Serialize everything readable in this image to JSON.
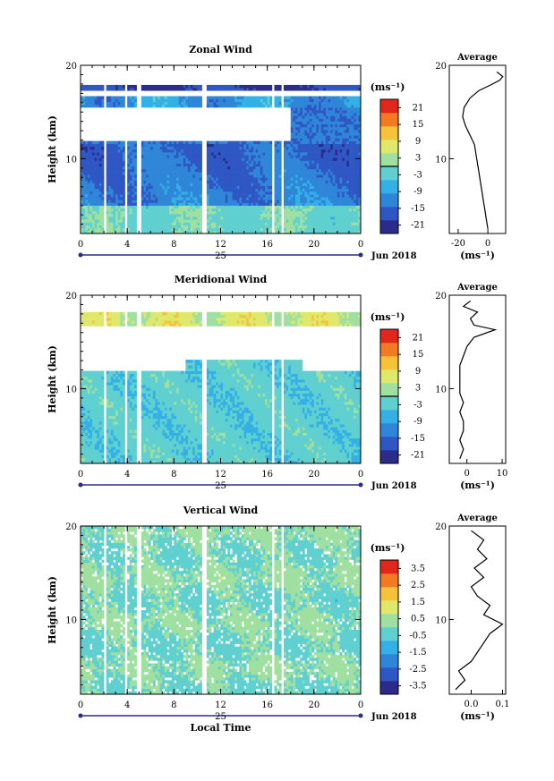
{
  "chart_data": [
    {
      "type": "heatmap",
      "title": "Zonal Wind",
      "ylabel": "Height (km)",
      "y_ticks": [
        "20",
        "10"
      ],
      "x_ticks": [
        "0",
        "4",
        "8",
        "12",
        "16",
        "20",
        "0"
      ],
      "x_ticks_values": [
        0,
        4,
        8,
        12,
        16,
        20,
        24
      ],
      "day_label": "25",
      "date_label": "Jun 2018",
      "xlim": [
        0,
        24
      ],
      "ylim": [
        2,
        20
      ],
      "colorbar": {
        "unit_label": "(ms⁻¹)",
        "tick_labels": [
          "21",
          "15",
          "9",
          "3",
          "-3",
          "-9",
          "-15",
          "-21"
        ],
        "range": [
          -24,
          24
        ],
        "zero_line": true
      },
      "profile": {
        "title": "Average",
        "x_ticks": [
          "-20",
          "0"
        ],
        "x_tick_values": [
          -20,
          0
        ],
        "xlabel": "(ms⁻¹)",
        "y_ticks": [
          "20",
          "10"
        ],
        "xlim": [
          -26,
          12
        ],
        "ylim": [
          2,
          20
        ],
        "points": [
          [
            0,
            2.5
          ],
          [
            -1,
            3.5
          ],
          [
            -2,
            4.5
          ],
          [
            -3,
            5.5
          ],
          [
            -4,
            6.5
          ],
          [
            -5,
            7.5
          ],
          [
            -6,
            8.5
          ],
          [
            -7,
            9.5
          ],
          [
            -8,
            10.5
          ],
          [
            -9,
            11.5
          ],
          [
            -12,
            12.5
          ],
          [
            -15,
            13.5
          ],
          [
            -17,
            14.5
          ],
          [
            -16,
            15.5
          ],
          [
            -12,
            16.5
          ],
          [
            -6,
            17.3
          ],
          [
            2,
            17.9
          ],
          [
            8,
            18.4
          ],
          [
            10,
            18.8
          ],
          [
            6,
            19.3
          ]
        ]
      }
    },
    {
      "type": "heatmap",
      "title": "Meridional Wind",
      "ylabel": "Height (km)",
      "y_ticks": [
        "20",
        "10"
      ],
      "x_ticks": [
        "0",
        "4",
        "8",
        "12",
        "16",
        "20",
        "0"
      ],
      "x_ticks_values": [
        0,
        4,
        8,
        12,
        16,
        20,
        24
      ],
      "day_label": "25",
      "date_label": "Jun 2018",
      "xlim": [
        0,
        24
      ],
      "ylim": [
        2,
        20
      ],
      "colorbar": {
        "unit_label": "(ms⁻¹)",
        "tick_labels": [
          "21",
          "15",
          "9",
          "3",
          "-3",
          "-9",
          "-15",
          "-21"
        ],
        "range": [
          -24,
          24
        ],
        "zero_line": true
      },
      "profile": {
        "title": "Average",
        "x_ticks": [
          "0",
          "10"
        ],
        "x_tick_values": [
          0,
          10
        ],
        "xlabel": "(ms⁻¹)",
        "y_ticks": [
          "20",
          "10"
        ],
        "xlim": [
          -5,
          11
        ],
        "ylim": [
          2,
          20
        ],
        "points": [
          [
            -2,
            2.5
          ],
          [
            -1,
            3.5
          ],
          [
            -2,
            4.5
          ],
          [
            -1,
            5.5
          ],
          [
            -1,
            6.5
          ],
          [
            -2,
            7.5
          ],
          [
            -1,
            8.5
          ],
          [
            -2,
            9.5
          ],
          [
            -2,
            10.5
          ],
          [
            -2,
            11.5
          ],
          [
            -2,
            12.5
          ],
          [
            -1,
            13.5
          ],
          [
            0,
            14.5
          ],
          [
            2,
            15.5
          ],
          [
            8,
            16.3
          ],
          [
            2,
            16.8
          ],
          [
            1,
            17.5
          ],
          [
            3,
            18.2
          ],
          [
            -1,
            18.8
          ],
          [
            1,
            19.4
          ]
        ]
      }
    },
    {
      "type": "heatmap",
      "title": "Vertical Wind",
      "ylabel": "Height (km)",
      "xlabel": "Local Time",
      "y_ticks": [
        "20",
        "10"
      ],
      "x_ticks": [
        "0",
        "4",
        "8",
        "12",
        "16",
        "20",
        "0"
      ],
      "x_ticks_values": [
        0,
        4,
        8,
        12,
        16,
        20,
        24
      ],
      "day_label": "25",
      "date_label": "Jun 2018",
      "xlim": [
        0,
        24
      ],
      "ylim": [
        2,
        20
      ],
      "colorbar": {
        "unit_label": "(ms⁻¹)",
        "tick_labels": [
          "3.5",
          "2.5",
          "1.5",
          "0.5",
          "-0.5",
          "-1.5",
          "-2.5",
          "-3.5"
        ],
        "range": [
          -4,
          4
        ],
        "zero_line": false
      },
      "profile": {
        "title": "Average",
        "x_ticks": [
          "0.0",
          "0.1"
        ],
        "x_tick_values": [
          0.0,
          0.1
        ],
        "xlabel": "(ms⁻¹)",
        "y_ticks": [
          "20",
          "10"
        ],
        "xlim": [
          -0.07,
          0.11
        ],
        "ylim": [
          2,
          20
        ],
        "points": [
          [
            -0.05,
            2.5
          ],
          [
            -0.02,
            3.5
          ],
          [
            -0.04,
            4.5
          ],
          [
            0.0,
            5.5
          ],
          [
            0.02,
            6.5
          ],
          [
            0.04,
            7.5
          ],
          [
            0.06,
            8.5
          ],
          [
            0.1,
            9.5
          ],
          [
            0.04,
            10.5
          ],
          [
            0.06,
            11.5
          ],
          [
            0.02,
            12.5
          ],
          [
            0.0,
            13.5
          ],
          [
            0.04,
            14.5
          ],
          [
            0.01,
            15.5
          ],
          [
            0.05,
            16.5
          ],
          [
            0.02,
            17.5
          ],
          [
            0.04,
            18.5
          ],
          [
            0.0,
            19.5
          ]
        ]
      }
    }
  ],
  "colors": {
    "scale": [
      "#2b2b8c",
      "#2e57c4",
      "#2f86d8",
      "#33b0e6",
      "#5fd0cf",
      "#9fe0a0",
      "#dfe86a",
      "#f5c23a",
      "#f27a22",
      "#e2261c"
    ]
  }
}
